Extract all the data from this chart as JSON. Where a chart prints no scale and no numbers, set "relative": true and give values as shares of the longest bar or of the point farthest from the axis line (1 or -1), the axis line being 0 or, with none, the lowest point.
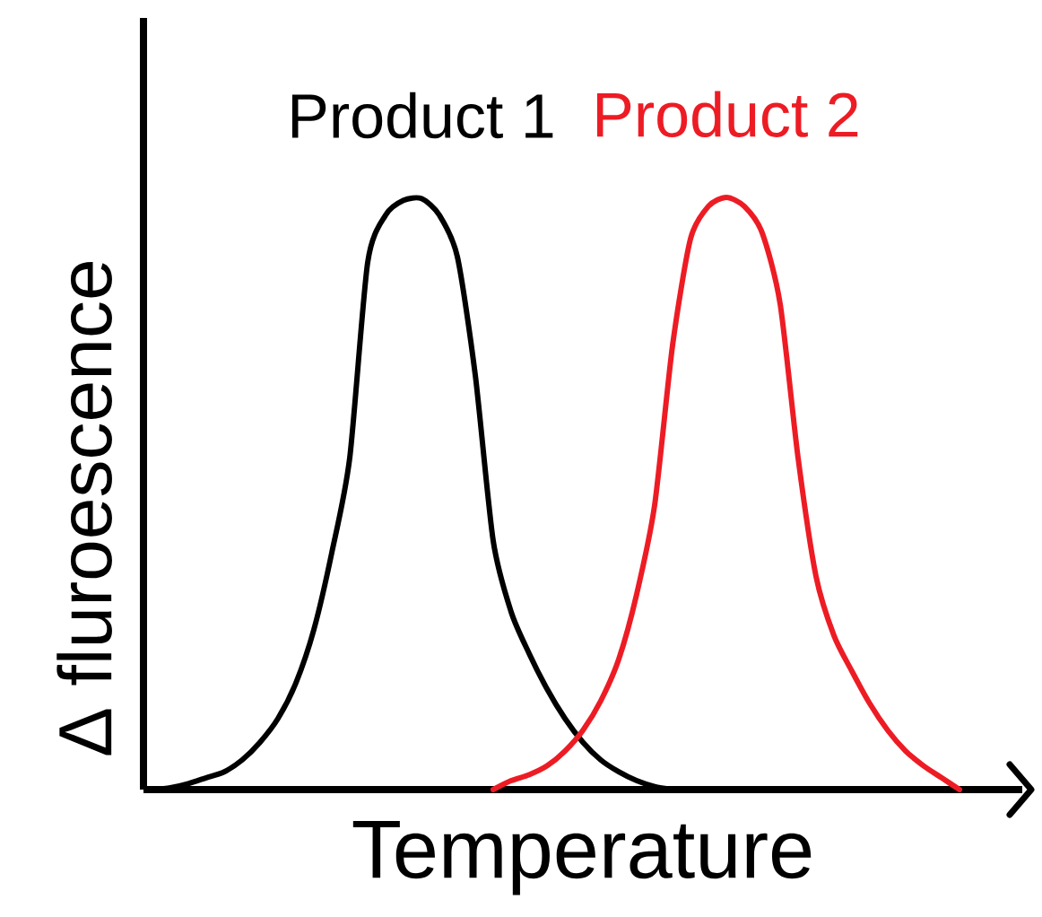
{
  "chart_data": {
    "type": "line",
    "relative": true,
    "xlabel": "Temperature",
    "ylabel": "Δ fluroescence",
    "categories": [
      null,
      null,
      null,
      null,
      null,
      null,
      null,
      null,
      null,
      null,
      null,
      null,
      null,
      null,
      null,
      null,
      null,
      null,
      null,
      null,
      null,
      null,
      null,
      null,
      null,
      null,
      null,
      null,
      null,
      null,
      null,
      null,
      null,
      null,
      null,
      null,
      null,
      null,
      null,
      null,
      null,
      null,
      null,
      null,
      null,
      null
    ],
    "series": [
      {
        "name": "Product 1",
        "color": "#000000",
        "values": [
          0,
          0.003,
          0.01,
          0.02,
          0.03,
          0.05,
          0.08,
          0.12,
          0.18,
          0.27,
          0.4,
          0.56,
          0.89,
          0.97,
          0.995,
          0.998,
          0.97,
          0.9,
          0.7,
          0.42,
          0.3,
          0.23,
          0.17,
          0.12,
          0.08,
          0.05,
          0.03,
          0.015,
          0.005,
          0,
          null,
          null,
          null,
          null,
          null,
          null,
          null,
          null,
          null,
          null,
          null,
          null,
          null,
          null,
          null,
          null
        ]
      },
      {
        "name": "Product 2",
        "color": "#ed1c24",
        "values": [
          null,
          null,
          null,
          null,
          null,
          null,
          null,
          null,
          null,
          null,
          null,
          null,
          null,
          null,
          null,
          null,
          null,
          null,
          null,
          0,
          0.015,
          0.025,
          0.04,
          0.065,
          0.1,
          0.15,
          0.22,
          0.33,
          0.48,
          0.75,
          0.93,
          0.985,
          1.0,
          0.985,
          0.94,
          0.82,
          0.56,
          0.36,
          0.26,
          0.2,
          0.145,
          0.1,
          0.065,
          0.04,
          0.02,
          0
        ]
      }
    ]
  }
}
